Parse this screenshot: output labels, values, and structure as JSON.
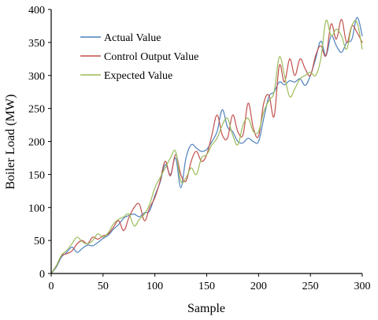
{
  "chart_data": {
    "type": "line",
    "xlabel": "Sample",
    "ylabel": "Boiler Load (MW)",
    "xlim": [
      0,
      300
    ],
    "ylim": [
      0,
      400
    ],
    "xticks": [
      0,
      50,
      100,
      150,
      200,
      250,
      300
    ],
    "yticks": [
      0,
      50,
      100,
      150,
      200,
      250,
      300,
      350,
      400
    ],
    "grid": false,
    "legend_position": "top-left",
    "series": [
      {
        "name": "Actual Value",
        "color": "#4f81bd",
        "points": [
          [
            0,
            0
          ],
          [
            5,
            10
          ],
          [
            10,
            25
          ],
          [
            15,
            32
          ],
          [
            20,
            40
          ],
          [
            25,
            32
          ],
          [
            30,
            38
          ],
          [
            35,
            43
          ],
          [
            40,
            42
          ],
          [
            45,
            47
          ],
          [
            50,
            53
          ],
          [
            55,
            58
          ],
          [
            60,
            67
          ],
          [
            65,
            74
          ],
          [
            70,
            84
          ],
          [
            75,
            88
          ],
          [
            80,
            90
          ],
          [
            85,
            86
          ],
          [
            90,
            92
          ],
          [
            95,
            95
          ],
          [
            100,
            118
          ],
          [
            105,
            138
          ],
          [
            110,
            165
          ],
          [
            115,
            150
          ],
          [
            120,
            175
          ],
          [
            125,
            130
          ],
          [
            130,
            175
          ],
          [
            135,
            195
          ],
          [
            140,
            190
          ],
          [
            145,
            185
          ],
          [
            150,
            188
          ],
          [
            155,
            200
          ],
          [
            160,
            215
          ],
          [
            165,
            248
          ],
          [
            170,
            222
          ],
          [
            175,
            215
          ],
          [
            180,
            200
          ],
          [
            185,
            198
          ],
          [
            190,
            205
          ],
          [
            195,
            200
          ],
          [
            200,
            200
          ],
          [
            205,
            235
          ],
          [
            210,
            268
          ],
          [
            215,
            275
          ],
          [
            220,
            290
          ],
          [
            225,
            286
          ],
          [
            230,
            292
          ],
          [
            235,
            290
          ],
          [
            240,
            295
          ],
          [
            245,
            285
          ],
          [
            250,
            300
          ],
          [
            255,
            325
          ],
          [
            260,
            352
          ],
          [
            265,
            330
          ],
          [
            270,
            360
          ],
          [
            275,
            345
          ],
          [
            280,
            335
          ],
          [
            285,
            350
          ],
          [
            290,
            355
          ],
          [
            295,
            388
          ],
          [
            300,
            360
          ]
        ]
      },
      {
        "name": "Control Output Value",
        "color": "#c0504d",
        "points": [
          [
            0,
            0
          ],
          [
            5,
            12
          ],
          [
            10,
            27
          ],
          [
            15,
            30
          ],
          [
            20,
            34
          ],
          [
            25,
            45
          ],
          [
            30,
            50
          ],
          [
            35,
            45
          ],
          [
            40,
            55
          ],
          [
            45,
            52
          ],
          [
            50,
            57
          ],
          [
            55,
            60
          ],
          [
            60,
            70
          ],
          [
            65,
            80
          ],
          [
            70,
            65
          ],
          [
            75,
            85
          ],
          [
            80,
            100
          ],
          [
            85,
            105
          ],
          [
            90,
            80
          ],
          [
            95,
            100
          ],
          [
            100,
            115
          ],
          [
            105,
            140
          ],
          [
            110,
            170
          ],
          [
            115,
            148
          ],
          [
            120,
            180
          ],
          [
            125,
            150
          ],
          [
            130,
            140
          ],
          [
            135,
            170
          ],
          [
            140,
            185
          ],
          [
            145,
            170
          ],
          [
            150,
            180
          ],
          [
            155,
            210
          ],
          [
            160,
            240
          ],
          [
            165,
            210
          ],
          [
            170,
            205
          ],
          [
            175,
            240
          ],
          [
            180,
            215
          ],
          [
            185,
            210
          ],
          [
            190,
            258
          ],
          [
            195,
            220
          ],
          [
            200,
            208
          ],
          [
            205,
            258
          ],
          [
            210,
            270
          ],
          [
            215,
            238
          ],
          [
            220,
            315
          ],
          [
            225,
            290
          ],
          [
            230,
            325
          ],
          [
            235,
            300
          ],
          [
            240,
            325
          ],
          [
            245,
            310
          ],
          [
            250,
            300
          ],
          [
            255,
            330
          ],
          [
            260,
            345
          ],
          [
            265,
            330
          ],
          [
            270,
            378
          ],
          [
            275,
            355
          ],
          [
            280,
            385
          ],
          [
            285,
            350
          ],
          [
            290,
            375
          ],
          [
            295,
            365
          ],
          [
            300,
            350
          ]
        ]
      },
      {
        "name": "Expected Value",
        "color": "#9bbb59",
        "points": [
          [
            0,
            0
          ],
          [
            5,
            12
          ],
          [
            10,
            28
          ],
          [
            15,
            35
          ],
          [
            20,
            45
          ],
          [
            25,
            55
          ],
          [
            30,
            48
          ],
          [
            35,
            45
          ],
          [
            40,
            50
          ],
          [
            45,
            60
          ],
          [
            50,
            55
          ],
          [
            55,
            62
          ],
          [
            60,
            75
          ],
          [
            65,
            82
          ],
          [
            70,
            86
          ],
          [
            75,
            90
          ],
          [
            80,
            72
          ],
          [
            85,
            82
          ],
          [
            90,
            90
          ],
          [
            95,
            105
          ],
          [
            100,
            130
          ],
          [
            105,
            145
          ],
          [
            110,
            160
          ],
          [
            115,
            175
          ],
          [
            120,
            185
          ],
          [
            125,
            140
          ],
          [
            130,
            145
          ],
          [
            135,
            160
          ],
          [
            140,
            150
          ],
          [
            145,
            175
          ],
          [
            150,
            180
          ],
          [
            155,
            195
          ],
          [
            160,
            205
          ],
          [
            165,
            225
          ],
          [
            170,
            235
          ],
          [
            175,
            210
          ],
          [
            180,
            195
          ],
          [
            185,
            225
          ],
          [
            190,
            235
          ],
          [
            195,
            215
          ],
          [
            200,
            215
          ],
          [
            205,
            245
          ],
          [
            210,
            262
          ],
          [
            215,
            275
          ],
          [
            220,
            328
          ],
          [
            225,
            300
          ],
          [
            230,
            268
          ],
          [
            235,
            280
          ],
          [
            240,
            295
          ],
          [
            245,
            300
          ],
          [
            250,
            305
          ],
          [
            255,
            300
          ],
          [
            260,
            325
          ],
          [
            265,
            383
          ],
          [
            270,
            360
          ],
          [
            275,
            370
          ],
          [
            280,
            360
          ],
          [
            285,
            340
          ],
          [
            290,
            375
          ],
          [
            295,
            380
          ],
          [
            300,
            340
          ]
        ]
      }
    ]
  }
}
